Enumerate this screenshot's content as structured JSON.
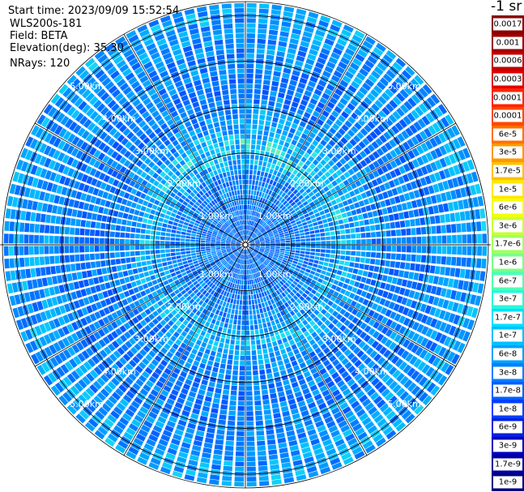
{
  "header": {
    "start_time": "Start time: 2023/09/09 15:52:54",
    "instrument": "WLS200s-181",
    "field": "Field: BETA",
    "elevation": "Elevation(deg): 35.30",
    "nrays": "NRays: 120"
  },
  "legend": {
    "unit": "-1 sr",
    "entries": [
      {
        "label": "0.0017",
        "color": "#8b0000"
      },
      {
        "label": "0.001",
        "color": "#a00000"
      },
      {
        "label": "0.0006",
        "color": "#c00000"
      },
      {
        "label": "0.0003",
        "color": "#e00000"
      },
      {
        "label": "0.00017",
        "color": "#ff2400"
      },
      {
        "label": "0.0001",
        "color": "#ff4800"
      },
      {
        "label": "6e-5",
        "color": "#ff7000"
      },
      {
        "label": "3e-5",
        "color": "#ff9800"
      },
      {
        "label": "1.7e-5",
        "color": "#ffc000"
      },
      {
        "label": "1e-5",
        "color": "#ffe800"
      },
      {
        "label": "6e-6",
        "color": "#f0ff10"
      },
      {
        "label": "3e-6",
        "color": "#c8ff38"
      },
      {
        "label": "1.7e-6",
        "color": "#a0ff60"
      },
      {
        "label": "1e-6",
        "color": "#78ff88"
      },
      {
        "label": "6e-7",
        "color": "#50ffb0"
      },
      {
        "label": "3e-7",
        "color": "#28f8d8"
      },
      {
        "label": "1.7e-7",
        "color": "#00e0ff"
      },
      {
        "label": "1e-7",
        "color": "#00c0ff"
      },
      {
        "label": "6e-8",
        "color": "#00a0ff"
      },
      {
        "label": "3e-8",
        "color": "#0080ff"
      },
      {
        "label": "1.7e-8",
        "color": "#0060ff"
      },
      {
        "label": "1e-8",
        "color": "#0040ff"
      },
      {
        "label": "6e-9",
        "color": "#0020e0"
      },
      {
        "label": "3e-9",
        "color": "#0000c0"
      },
      {
        "label": "1.7e-9",
        "color": "#0000a0"
      },
      {
        "label": "1e-9",
        "color": "#000080"
      }
    ]
  },
  "chart_data": {
    "type": "heatmap",
    "projection": "polar",
    "field": "BETA",
    "unit": "-1 sr",
    "elevation_deg": 35.3,
    "nrays": 120,
    "range_labels": [
      "1.00km",
      "2.00km",
      "3.00km",
      "4.00km",
      "5.00km"
    ],
    "range_rings_km": [
      1,
      2,
      3,
      4,
      5
    ],
    "max_range_km": 5.3,
    "azimuth_spokes_deg": [
      0,
      30,
      60,
      90,
      120,
      150,
      180,
      210,
      240,
      270,
      300,
      330
    ],
    "grid": true,
    "color_scale": "log",
    "value_range": [
      1e-09,
      0.0017
    ],
    "radial_profile": [
      {
        "range_km": 0.5,
        "value": "1.7e-8"
      },
      {
        "range_km": 1.0,
        "value": "3e-8"
      },
      {
        "range_km": 1.5,
        "value": "1e-7"
      },
      {
        "range_km": 2.0,
        "value": "3e-7"
      },
      {
        "range_km": 2.5,
        "value": "1e-7"
      },
      {
        "range_km": 3.0,
        "value": "6e-8"
      },
      {
        "range_km": 4.0,
        "value": "1e-7"
      },
      {
        "range_km": 5.0,
        "value": "3e-7"
      }
    ]
  }
}
